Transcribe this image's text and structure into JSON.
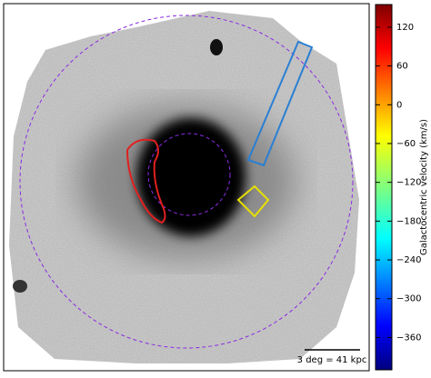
{
  "chart_data": {
    "type": "colorbar",
    "label": "Galactocentric velocity (km/s)",
    "scale_bar": "3 deg = 41 kpc",
    "ylim": [
      -410,
      155
    ],
    "yticks": [
      {
        "value": -360,
        "label": "−360"
      },
      {
        "value": -300,
        "label": "−300"
      },
      {
        "value": -240,
        "label": "−240"
      },
      {
        "value": -180,
        "label": "−180"
      },
      {
        "value": -120,
        "label": "−120"
      },
      {
        "value": -60,
        "label": "−60"
      },
      0,
      60,
      120
    ]
  }
}
